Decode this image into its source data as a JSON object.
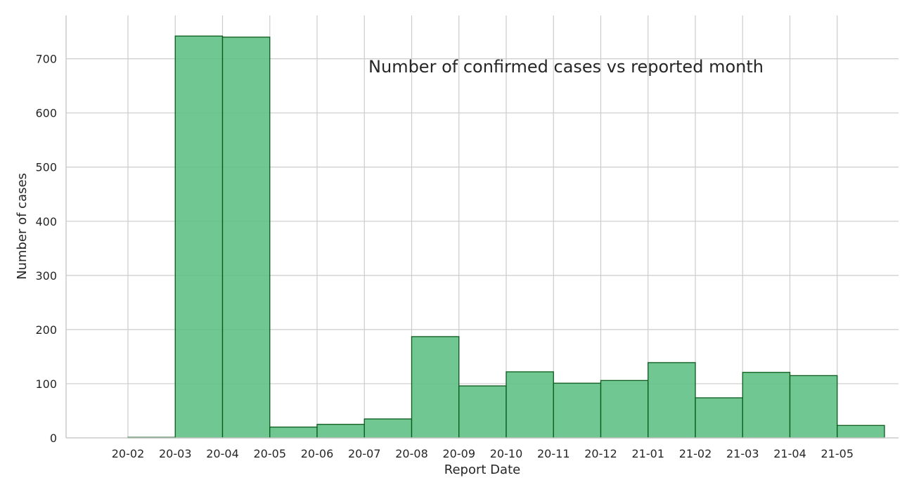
{
  "chart_data": {
    "type": "bar",
    "title": "Number of confirmed cases vs reported month",
    "xlabel": "Report Date",
    "ylabel": "Number of cases",
    "categories": [
      "20-02",
      "20-03",
      "20-04",
      "20-05",
      "20-06",
      "20-07",
      "20-08",
      "20-09",
      "20-10",
      "20-11",
      "20-12",
      "21-01",
      "21-02",
      "21-03",
      "21-04",
      "21-05"
    ],
    "values": [
      1,
      742,
      740,
      20,
      25,
      35,
      187,
      96,
      122,
      101,
      106,
      139,
      74,
      121,
      115,
      23
    ],
    "ylim": [
      0,
      780
    ],
    "yticks": [
      0,
      100,
      200,
      300,
      400,
      500,
      600,
      700
    ],
    "grid": true,
    "colors": {
      "bar_fill": "#5cbf82",
      "bar_edge": "#0b5a1c",
      "grid": "#cccccc",
      "text": "#262626"
    }
  }
}
